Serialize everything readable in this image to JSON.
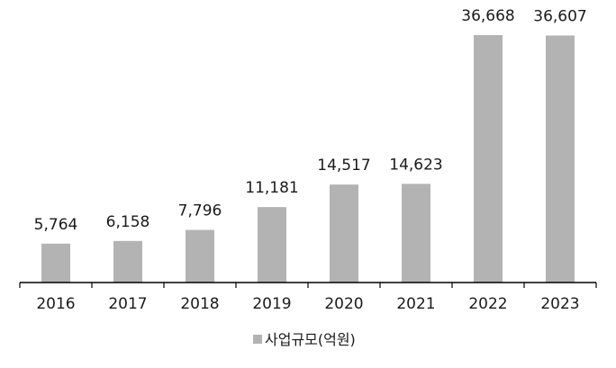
{
  "chart_data": {
    "type": "bar",
    "categories": [
      "2016",
      "2017",
      "2018",
      "2019",
      "2020",
      "2021",
      "2022",
      "2023"
    ],
    "series": [
      {
        "name": "사업규모(억원)",
        "values": [
          5764,
          6158,
          7796,
          11181,
          14517,
          14623,
          36668,
          36607
        ],
        "labels": [
          "5,764",
          "6,158",
          "7,796",
          "11,181",
          "14,517",
          "14,623",
          "36,668",
          "36,607"
        ],
        "color": "#b3b3b3"
      }
    ],
    "ylim": [
      0,
      40000
    ],
    "grid": false,
    "legend": "bottom-center",
    "axis_color": "#000000"
  }
}
